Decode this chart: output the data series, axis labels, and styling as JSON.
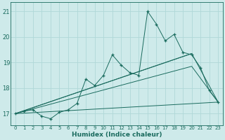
{
  "xlabel": "Humidex (Indice chaleur)",
  "ylabel": "",
  "background_color": "#ceeaea",
  "grid_color": "#b0d8d8",
  "line_color": "#1a6b5e",
  "xlim": [
    -0.5,
    23.5
  ],
  "ylim": [
    16.55,
    21.35
  ],
  "yticks": [
    17,
    18,
    19,
    20,
    21
  ],
  "xticks": [
    0,
    1,
    2,
    3,
    4,
    5,
    6,
    7,
    8,
    9,
    10,
    11,
    12,
    13,
    14,
    15,
    16,
    17,
    18,
    19,
    20,
    21,
    22,
    23
  ],
  "main_x": [
    0,
    1,
    2,
    3,
    4,
    5,
    6,
    7,
    8,
    9,
    10,
    11,
    12,
    13,
    14,
    15,
    16,
    17,
    18,
    19,
    20,
    21,
    22,
    23
  ],
  "main_y": [
    17.0,
    17.1,
    17.15,
    16.9,
    16.8,
    17.05,
    17.15,
    17.4,
    18.35,
    18.1,
    18.5,
    19.3,
    18.9,
    18.6,
    18.5,
    21.0,
    20.5,
    19.85,
    20.1,
    19.4,
    19.3,
    18.8,
    17.9,
    17.45
  ],
  "line1_x": [
    0,
    20,
    23
  ],
  "line1_y": [
    17.0,
    19.35,
    17.45
  ],
  "line2_x": [
    0,
    20,
    23
  ],
  "line2_y": [
    17.0,
    18.85,
    17.45
  ],
  "line3_x": [
    0,
    23
  ],
  "line3_y": [
    17.0,
    17.45
  ],
  "line4_x": [
    0,
    20
  ],
  "line4_y": [
    17.0,
    19.35
  ]
}
